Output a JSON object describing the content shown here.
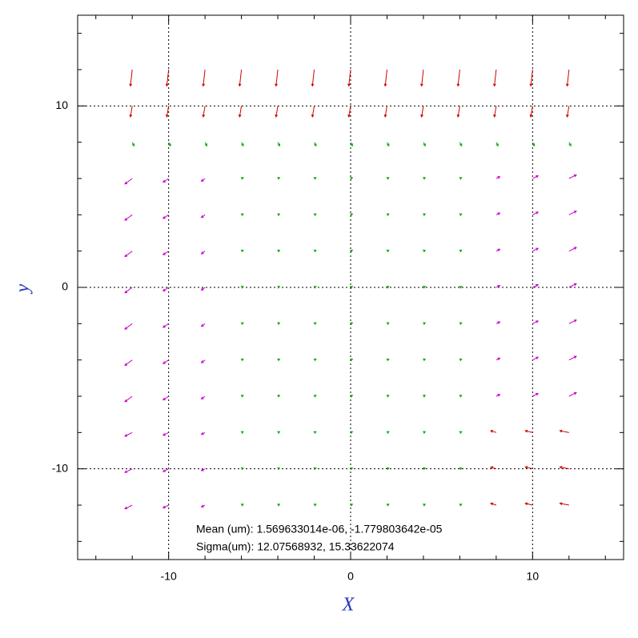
{
  "chart_data": {
    "type": "quiver",
    "xlabel": "X",
    "ylabel": "y",
    "annotations": [
      "Mean (um): 1.569633014e-06, -1.779803642e-05",
      "Sigma(um): 12.07568932, 15.33622074"
    ],
    "xlim": [
      -15,
      15
    ],
    "ylim": [
      -15,
      15
    ],
    "xticks": [
      -10,
      0,
      10
    ],
    "yticks": [
      -10,
      0,
      10
    ],
    "xticks_minor": [
      -14,
      -12,
      -8,
      -6,
      -4,
      -2,
      2,
      4,
      6,
      8,
      12,
      14
    ],
    "yticks_minor": [
      -14,
      -12,
      -8,
      -6,
      -4,
      -2,
      2,
      4,
      6,
      8,
      12,
      14
    ],
    "grid": true,
    "palette": [
      "#cc0000",
      "#cc00cc",
      "#00aa00"
    ],
    "x": [
      -12,
      -10,
      -8,
      -6,
      -4,
      -2,
      0,
      2,
      4,
      6,
      8,
      10,
      12
    ],
    "y": [
      12,
      10,
      8,
      6,
      4,
      2,
      0,
      -2,
      -4,
      -6,
      -8,
      -10,
      -12
    ],
    "u": [
      [
        -0.1,
        -0.1,
        -0.1,
        -0.1,
        -0.1,
        -0.1,
        -0.1,
        -0.1,
        -0.1,
        -0.1,
        -0.1,
        -0.1,
        -0.1
      ],
      [
        -0.1,
        -0.1,
        -0.1,
        -0.1,
        -0.1,
        -0.1,
        -0.1,
        -0.1,
        -0.1,
        -0.1,
        -0.1,
        -0.1,
        -0.1
      ],
      [
        0.1,
        0.1,
        0.1,
        0.1,
        0.1,
        0.1,
        0.1,
        0.1,
        0.1,
        0.1,
        0.1,
        0.1,
        0.1
      ],
      [
        -0.4,
        -0.3,
        -0.2,
        0.1,
        0.1,
        0.1,
        0.1,
        0.1,
        0.1,
        0.1,
        0.2,
        0.3,
        0.4
      ],
      [
        -0.4,
        -0.3,
        -0.2,
        0.1,
        0.1,
        0.1,
        0.1,
        0.1,
        0.1,
        0.1,
        0.2,
        0.3,
        0.4
      ],
      [
        -0.4,
        -0.3,
        -0.2,
        0.1,
        0.1,
        0.1,
        0.1,
        0.1,
        0.1,
        0.1,
        0.2,
        0.3,
        0.4
      ],
      [
        -0.4,
        -0.3,
        -0.2,
        0.1,
        0.1,
        0.1,
        0.1,
        0.1,
        0.1,
        0.1,
        0.2,
        0.3,
        0.4
      ],
      [
        -0.4,
        -0.3,
        -0.2,
        0.1,
        0.1,
        0.1,
        0.1,
        0.1,
        0.1,
        0.1,
        0.2,
        0.3,
        0.4
      ],
      [
        -0.4,
        -0.3,
        -0.2,
        0.1,
        0.1,
        0.1,
        0.1,
        0.1,
        0.1,
        0.1,
        0.2,
        0.3,
        0.4
      ],
      [
        -0.4,
        -0.3,
        -0.2,
        0.1,
        0.1,
        0.1,
        0.1,
        0.1,
        0.1,
        0.1,
        0.2,
        0.3,
        0.4
      ],
      [
        -0.4,
        -0.3,
        -0.2,
        0.1,
        0.1,
        0.1,
        0.1,
        0.1,
        0.1,
        0.1,
        -0.3,
        -0.4,
        -0.5
      ],
      [
        -0.4,
        -0.3,
        -0.2,
        0.1,
        0.1,
        0.1,
        0.1,
        0.1,
        0.1,
        0.1,
        -0.3,
        -0.4,
        -0.5
      ],
      [
        -0.4,
        -0.3,
        -0.2,
        0.1,
        0.1,
        0.1,
        0.1,
        0.1,
        0.1,
        0.1,
        -0.3,
        -0.4,
        -0.5
      ]
    ],
    "v": [
      [
        -0.9,
        -0.9,
        -0.9,
        -0.9,
        -0.9,
        -0.9,
        -0.9,
        -0.9,
        -0.9,
        -0.9,
        -0.9,
        -0.9,
        -0.9
      ],
      [
        -0.6,
        -0.6,
        -0.6,
        -0.6,
        -0.6,
        -0.6,
        -0.6,
        -0.6,
        -0.6,
        -0.6,
        -0.6,
        -0.6,
        -0.6
      ],
      [
        -0.2,
        -0.2,
        -0.2,
        -0.2,
        -0.2,
        -0.2,
        -0.2,
        -0.2,
        -0.2,
        -0.2,
        -0.2,
        -0.2,
        -0.2
      ],
      [
        -0.3,
        -0.2,
        -0.15,
        0.05,
        0.05,
        0.05,
        0.05,
        0.05,
        0.05,
        0.05,
        0.1,
        0.15,
        0.2
      ],
      [
        -0.3,
        -0.2,
        -0.15,
        0.05,
        0.05,
        0.05,
        0.05,
        0.05,
        0.05,
        0.05,
        0.1,
        0.15,
        0.2
      ],
      [
        -0.3,
        -0.2,
        -0.15,
        0.05,
        0.05,
        0.05,
        0.05,
        0.05,
        0.05,
        0.05,
        0.1,
        0.15,
        0.2
      ],
      [
        -0.3,
        -0.2,
        -0.15,
        0.05,
        0.05,
        0.05,
        0.05,
        0.05,
        0.05,
        0.05,
        0.1,
        0.15,
        0.2
      ],
      [
        -0.3,
        -0.2,
        -0.15,
        0.05,
        0.05,
        0.05,
        0.05,
        0.05,
        0.05,
        0.05,
        0.1,
        0.15,
        0.2
      ],
      [
        -0.3,
        -0.2,
        -0.15,
        0.05,
        0.05,
        0.05,
        0.05,
        0.05,
        0.05,
        0.05,
        0.1,
        0.15,
        0.2
      ],
      [
        -0.3,
        -0.2,
        -0.15,
        0.05,
        0.05,
        0.05,
        0.05,
        0.05,
        0.05,
        0.05,
        0.1,
        0.15,
        0.2
      ],
      [
        -0.2,
        -0.15,
        -0.1,
        0.05,
        0.05,
        0.05,
        0.05,
        0.05,
        0.05,
        0.05,
        0.1,
        0.1,
        0.1
      ],
      [
        -0.2,
        -0.15,
        -0.1,
        0.05,
        0.05,
        0.05,
        0.05,
        0.05,
        0.05,
        0.05,
        0.1,
        0.1,
        0.1
      ],
      [
        -0.2,
        -0.15,
        -0.1,
        0.05,
        0.05,
        0.05,
        0.05,
        0.05,
        0.05,
        0.05,
        0.1,
        0.1,
        0.1
      ]
    ],
    "color_index": [
      [
        0,
        0,
        0,
        0,
        0,
        0,
        0,
        0,
        0,
        0,
        0,
        0,
        0
      ],
      [
        0,
        0,
        0,
        0,
        0,
        0,
        0,
        0,
        0,
        0,
        0,
        0,
        0
      ],
      [
        2,
        2,
        2,
        2,
        2,
        2,
        2,
        2,
        2,
        2,
        2,
        2,
        2
      ],
      [
        1,
        1,
        1,
        2,
        2,
        2,
        2,
        2,
        2,
        2,
        1,
        1,
        1
      ],
      [
        1,
        1,
        1,
        2,
        2,
        2,
        2,
        2,
        2,
        2,
        1,
        1,
        1
      ],
      [
        1,
        1,
        1,
        2,
        2,
        2,
        2,
        2,
        2,
        2,
        1,
        1,
        1
      ],
      [
        1,
        1,
        1,
        2,
        2,
        2,
        2,
        2,
        2,
        2,
        1,
        1,
        1
      ],
      [
        1,
        1,
        1,
        2,
        2,
        2,
        2,
        2,
        2,
        2,
        1,
        1,
        1
      ],
      [
        1,
        1,
        1,
        2,
        2,
        2,
        2,
        2,
        2,
        2,
        1,
        1,
        1
      ],
      [
        1,
        1,
        1,
        2,
        2,
        2,
        2,
        2,
        2,
        2,
        1,
        1,
        1
      ],
      [
        1,
        1,
        1,
        2,
        2,
        2,
        2,
        2,
        2,
        2,
        0,
        0,
        0
      ],
      [
        1,
        1,
        1,
        2,
        2,
        2,
        2,
        2,
        2,
        2,
        0,
        0,
        0
      ],
      [
        1,
        1,
        1,
        2,
        2,
        2,
        2,
        2,
        2,
        2,
        0,
        0,
        0
      ]
    ]
  }
}
